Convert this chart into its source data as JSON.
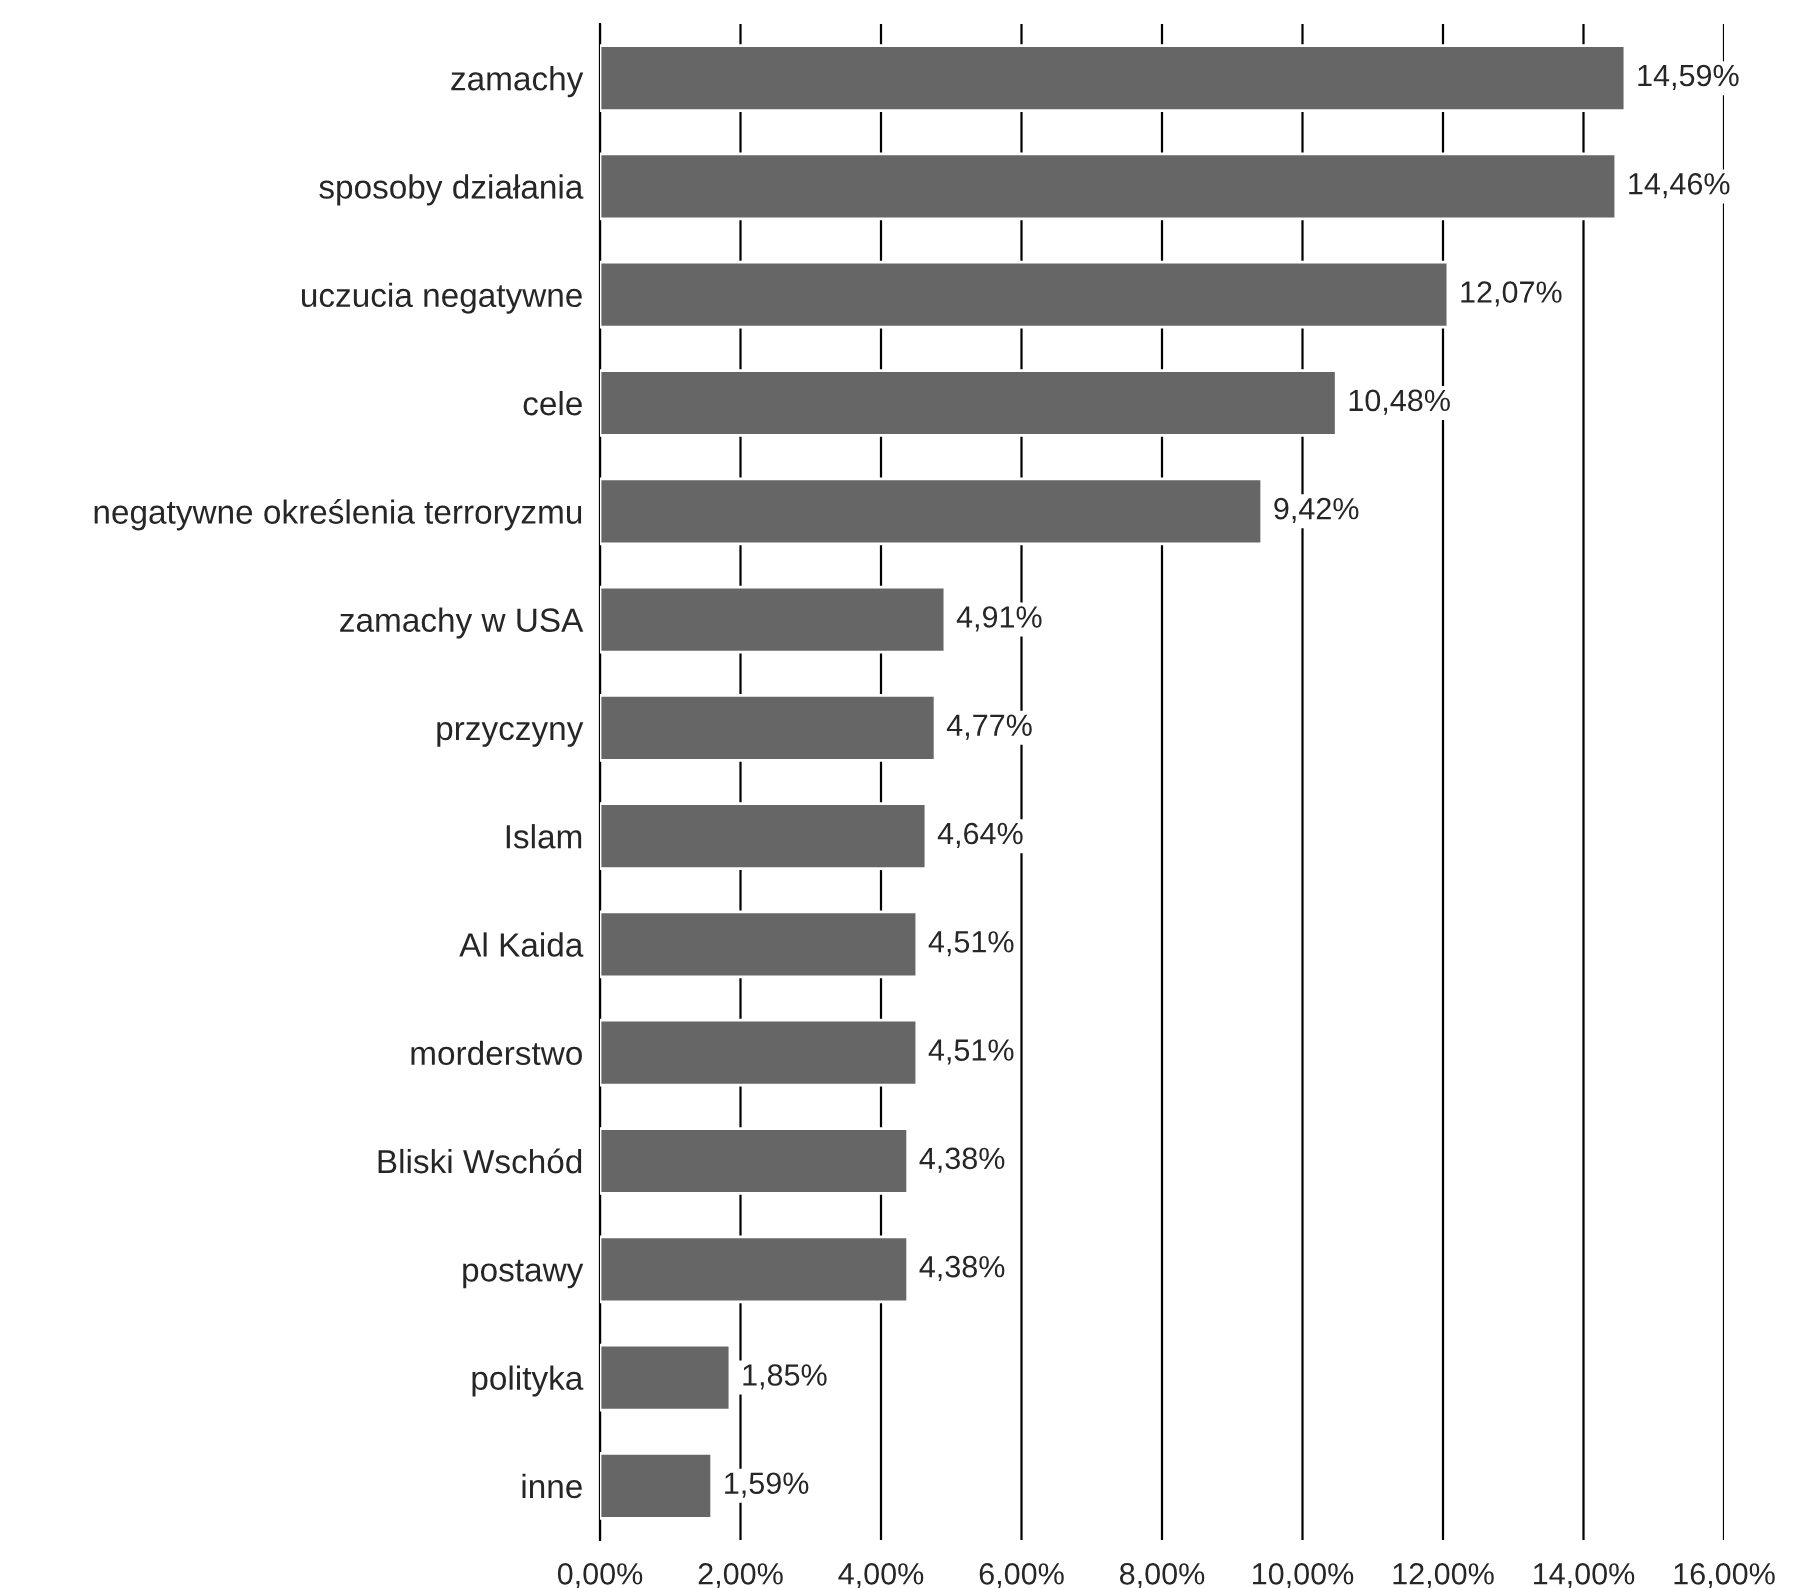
{
  "chart_data": {
    "type": "bar",
    "orientation": "horizontal",
    "categories": [
      "zamachy",
      "sposoby działania",
      "uczucia negatywne",
      "cele",
      "negatywne określenia terroryzmu",
      "zamachy w USA",
      "przyczyny",
      "Islam",
      "Al Kaida",
      "morderstwo",
      "Bliski Wschód",
      "postawy",
      "polityka",
      "inne"
    ],
    "values": [
      14.59,
      14.46,
      12.07,
      10.48,
      9.42,
      4.91,
      4.77,
      4.64,
      4.51,
      4.51,
      4.38,
      4.38,
      1.85,
      1.59
    ],
    "value_labels": [
      "14,59%",
      "14,46%",
      "12,07%",
      "10,48%",
      "9,42%",
      "4,91%",
      "4,77%",
      "4,64%",
      "4,51%",
      "4,51%",
      "4,38%",
      "4,38%",
      "1,85%",
      "1,59%"
    ],
    "color": "#666666",
    "xlim": [
      0,
      16
    ],
    "xticks": [
      {
        "value": 0,
        "label": "0,00%"
      },
      {
        "value": 2,
        "label": "2,00%"
      },
      {
        "value": 4,
        "label": "4,00%"
      },
      {
        "value": 6,
        "label": "6,00%"
      },
      {
        "value": 8,
        "label": "8,00%"
      },
      {
        "value": 10,
        "label": "10,00%"
      },
      {
        "value": 12,
        "label": "12,00%"
      },
      {
        "value": 14,
        "label": "14,00%"
      },
      {
        "value": 16,
        "label": "16,00%"
      }
    ],
    "grid": "x"
  }
}
